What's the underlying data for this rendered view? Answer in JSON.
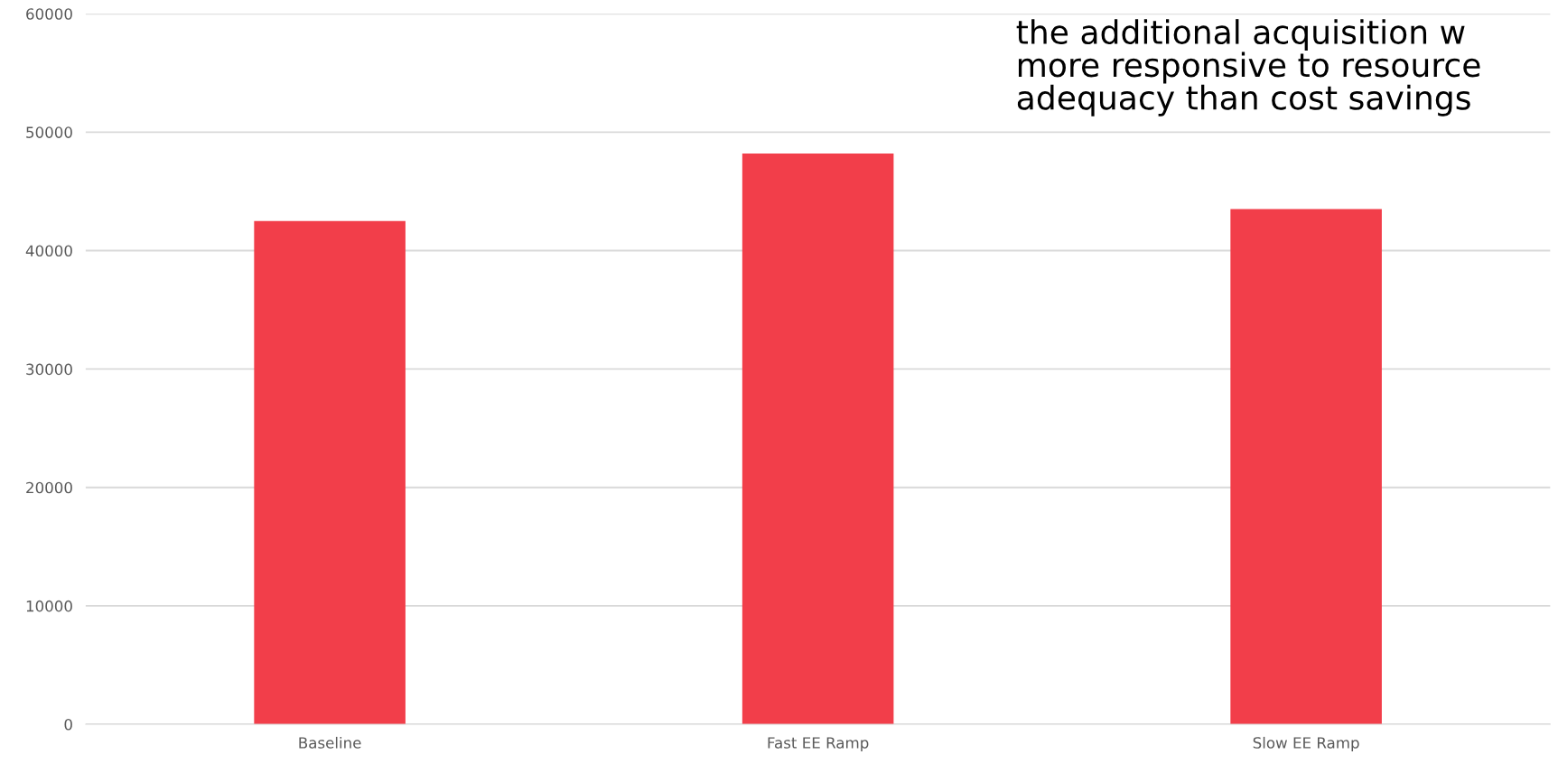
{
  "chart_data": {
    "type": "bar",
    "categories": [
      "Baseline",
      "Fast EE Ramp",
      "Slow EE Ramp"
    ],
    "values": [
      42500,
      48200,
      43500
    ],
    "color": "#f23e4a",
    "ylim": [
      0,
      60000
    ],
    "yticks": [
      0,
      10000,
      20000,
      30000,
      40000,
      50000,
      60000
    ],
    "grid": "y",
    "annotations": [
      "the additional acquisition w\nmore responsive to resource\nadequacy than cost savings"
    ]
  }
}
